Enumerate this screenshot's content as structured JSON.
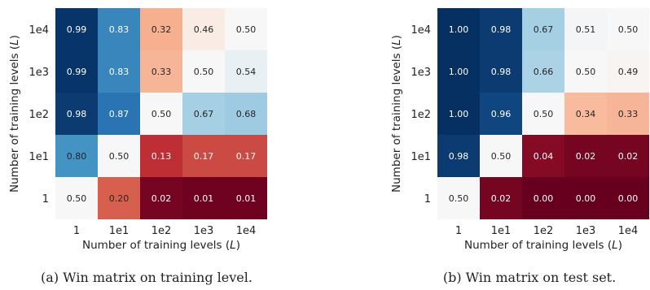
{
  "chart_data": [
    {
      "type": "heatmap",
      "title": "",
      "caption": "(a) Win matrix on training level.",
      "xlabel": "Number of training levels (L)",
      "ylabel": "Number of training levels (L)",
      "x_categories": [
        "1",
        "1e1",
        "1e2",
        "1e3",
        "1e4"
      ],
      "y_categories": [
        "1e4",
        "1e3",
        "1e2",
        "1e1",
        "1"
      ],
      "values": [
        [
          0.99,
          0.83,
          0.32,
          0.46,
          0.5
        ],
        [
          0.99,
          0.83,
          0.33,
          0.5,
          0.54
        ],
        [
          0.98,
          0.87,
          0.5,
          0.67,
          0.68
        ],
        [
          0.8,
          0.5,
          0.13,
          0.17,
          0.17
        ],
        [
          0.5,
          0.2,
          0.02,
          0.01,
          0.01
        ]
      ],
      "colormap": "RdBu",
      "vmin": 0,
      "vmax": 1
    },
    {
      "type": "heatmap",
      "title": "",
      "caption": "(b) Win matrix on test set.",
      "xlabel": "Number of training levels (L)",
      "ylabel": "Number of training levels (L)",
      "x_categories": [
        "1",
        "1e1",
        "1e2",
        "1e3",
        "1e4"
      ],
      "y_categories": [
        "1e4",
        "1e3",
        "1e2",
        "1e1",
        "1"
      ],
      "values": [
        [
          1.0,
          0.98,
          0.67,
          0.51,
          0.5
        ],
        [
          1.0,
          0.98,
          0.66,
          0.5,
          0.49
        ],
        [
          1.0,
          0.96,
          0.5,
          0.34,
          0.33
        ],
        [
          0.98,
          0.5,
          0.04,
          0.02,
          0.02
        ],
        [
          0.5,
          0.02,
          0.0,
          0.0,
          0.0
        ]
      ],
      "colormap": "RdBu",
      "vmin": 0,
      "vmax": 1
    }
  ]
}
